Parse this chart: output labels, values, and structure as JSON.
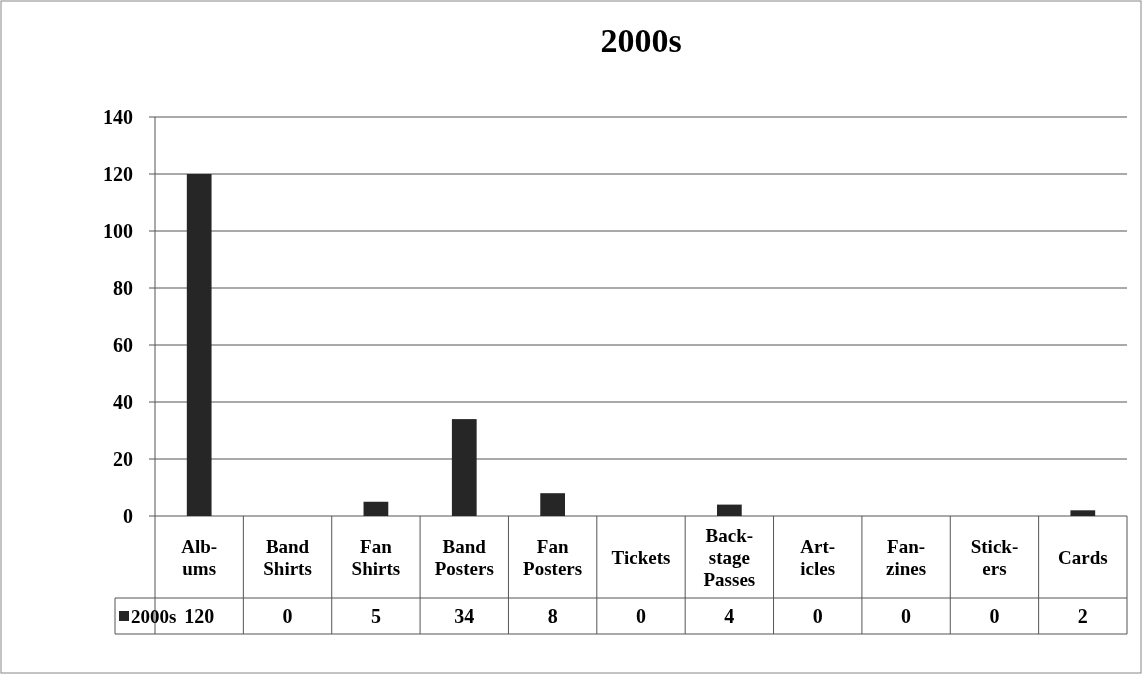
{
  "chart_data": {
    "type": "bar",
    "title": "2000s",
    "categories": [
      "Alb-\nums",
      "Band\nShirts",
      "Fan\nShirts",
      "Band\nPosters",
      "Fan\nPosters",
      "Tickets",
      "Back-\nstage\nPasses",
      "Art-\nicles",
      "Fan-\nzines",
      "Stick-\ners",
      "Cards"
    ],
    "series": [
      {
        "name": "2000s",
        "color": "#262626",
        "values": [
          120,
          0,
          5,
          34,
          8,
          0,
          4,
          0,
          0,
          0,
          2
        ]
      }
    ],
    "ylim": [
      0,
      140
    ],
    "yticks": [
      0,
      20,
      40,
      60,
      80,
      100,
      120,
      140
    ],
    "grid": "y",
    "legend": "bottom",
    "data_labels": true
  }
}
